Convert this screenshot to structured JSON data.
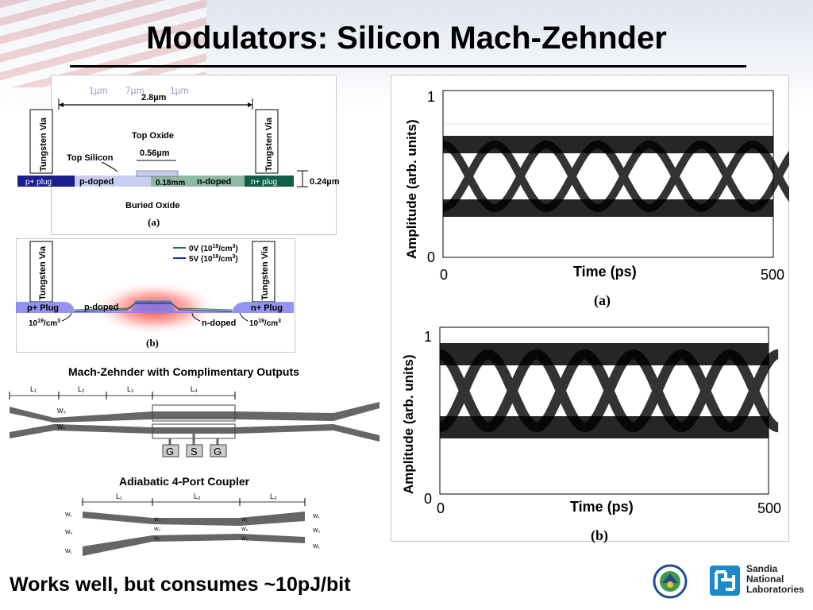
{
  "title": "Modulators: Silicon Mach-Zehnder",
  "footer": "Works well, but consumes ~10pJ/bit",
  "cross_section": {
    "dims_top": [
      "1µm",
      "7µm",
      "1µm"
    ],
    "width_label": "2.8µm",
    "tungsten_via": "Tungsten Via",
    "top_oxide": "Top Oxide",
    "top_silicon": "Top Silicon",
    "rib_width": "0.56µm",
    "slab_height": "0.18mm",
    "total_height": "0.24µm",
    "p_plug": "p+ plug",
    "p_doped": "p-doped",
    "n_doped": "n-doped",
    "n_plug": "n+ plug",
    "buried_oxide": "Buried Oxide",
    "label": "(a)"
  },
  "simulation": {
    "legend_0v": "0V (10",
    "legend_5v": "5V (10",
    "legend_exp": "18",
    "legend_unit": "/cm",
    "legend_cube": "3",
    "legend_close": ")",
    "tungsten_via": "Tungsten Via",
    "p_plug": "p+ Plug",
    "p_doped": "p-doped",
    "n_doped": "n-doped",
    "n_plug": "n+ Plug",
    "conc_base": "10",
    "conc_exp": "19",
    "conc_unit": "/cm",
    "conc_cube": "3",
    "label": "(b)"
  },
  "mz": {
    "title": "Mach-Zehnder with Complimentary Outputs",
    "lengths": [
      "L₁",
      "L₂",
      "L₃",
      "L₄"
    ],
    "w3": "W₃",
    "w1": "W₁",
    "pads": [
      "G",
      "S",
      "G"
    ]
  },
  "coupler": {
    "title": "Adiabatic 4-Port Coupler",
    "lengths": [
      "L₁",
      "L₂",
      "L₃"
    ],
    "w_left": [
      "W₁",
      "W₀",
      "W₁"
    ],
    "w_mid1": [
      "W₃",
      "W₄",
      "W₁"
    ],
    "w_mid2": [
      "W₁",
      "W₄",
      "W₃"
    ],
    "w_right": [
      "W₁",
      "W₂",
      "W₁"
    ]
  },
  "eye_a": {
    "ylabel": "Amplitude (arb. units)",
    "xlabel": "Time (ps)",
    "y_top": "1",
    "y_bottom": "0",
    "x_left": "0",
    "x_right": "500",
    "label": "(a)"
  },
  "eye_b": {
    "ylabel": "Amplitude (arb. units)",
    "xlabel": "Time (ps)",
    "y_top": "1",
    "y_bottom": "0",
    "x_left": "0",
    "x_right": "500",
    "label": "(b)"
  },
  "logos": {
    "sandia_line1": "Sandia",
    "sandia_line2": "National",
    "sandia_line3": "Laboratories"
  },
  "colors": {
    "p_plug": "#1a1f8c",
    "p_doped": "#c9cdf2",
    "n_doped": "#8fb8a6",
    "n_plug": "#115e4a",
    "sim_blue": "#7f7ff0",
    "sandia_blue": "#1b8ac9"
  }
}
